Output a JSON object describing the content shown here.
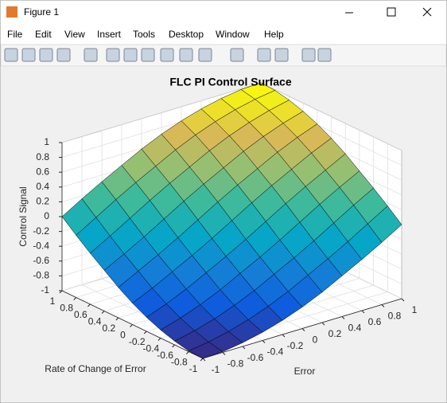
{
  "window": {
    "title": "Figure 1",
    "menu": [
      "File",
      "Edit",
      "View",
      "Insert",
      "Tools",
      "Desktop",
      "Window",
      "Help"
    ]
  },
  "chart_data": {
    "type": "surface",
    "title": "FLC PI Control Surface",
    "xlabel": "Error",
    "ylabel": "Rate of Change of Error",
    "zlabel": "Control Signal",
    "colormap": "parula",
    "grid": true,
    "x": [
      -1,
      -0.8,
      -0.6,
      -0.4,
      -0.2,
      0,
      0.2,
      0.4,
      0.6,
      0.8,
      1
    ],
    "y": [
      -1,
      -0.8,
      -0.6,
      -0.4,
      -0.2,
      0,
      0.2,
      0.4,
      0.6,
      0.8,
      1
    ],
    "z": [
      [
        -1,
        -0.99,
        -0.95,
        -0.89,
        -0.81,
        -0.71,
        -0.59,
        -0.45,
        -0.31,
        -0.16,
        0
      ],
      [
        -0.99,
        -0.95,
        -0.89,
        -0.81,
        -0.71,
        -0.59,
        -0.45,
        -0.31,
        -0.16,
        0,
        0.16
      ],
      [
        -0.95,
        -0.89,
        -0.81,
        -0.71,
        -0.59,
        -0.45,
        -0.31,
        -0.16,
        0,
        0.16,
        0.31
      ],
      [
        -0.89,
        -0.81,
        -0.71,
        -0.59,
        -0.45,
        -0.31,
        -0.16,
        0,
        0.16,
        0.31,
        0.45
      ],
      [
        -0.81,
        -0.71,
        -0.59,
        -0.45,
        -0.31,
        -0.16,
        0,
        0.16,
        0.31,
        0.45,
        0.59
      ],
      [
        -0.71,
        -0.59,
        -0.45,
        -0.31,
        -0.16,
        0,
        0.16,
        0.31,
        0.45,
        0.59,
        0.71
      ],
      [
        -0.59,
        -0.45,
        -0.31,
        -0.16,
        0,
        0.16,
        0.31,
        0.45,
        0.59,
        0.71,
        0.81
      ],
      [
        -0.45,
        -0.31,
        -0.16,
        0,
        0.16,
        0.31,
        0.45,
        0.59,
        0.71,
        0.81,
        0.89
      ],
      [
        -0.31,
        -0.16,
        0,
        0.16,
        0.31,
        0.45,
        0.59,
        0.71,
        0.81,
        0.89,
        0.95
      ],
      [
        -0.16,
        0,
        0.16,
        0.31,
        0.45,
        0.59,
        0.71,
        0.81,
        0.89,
        0.95,
        0.99
      ],
      [
        0,
        0.16,
        0.31,
        0.45,
        0.59,
        0.71,
        0.81,
        0.89,
        0.95,
        0.99,
        1
      ]
    ],
    "xlim": [
      -1,
      1
    ],
    "xticks": [
      -1,
      -0.8,
      -0.6,
      -0.4,
      -0.2,
      0,
      0.2,
      0.4,
      0.6,
      0.8,
      1
    ],
    "ylim": [
      -1,
      1
    ],
    "yticks": [
      -1,
      -0.8,
      -0.6,
      -0.4,
      -0.2,
      0,
      0.2,
      0.4,
      0.6,
      0.8,
      1
    ],
    "zlim": [
      -1,
      1
    ],
    "zticks": [
      -1,
      -0.8,
      -0.6,
      -0.4,
      -0.2,
      0,
      0.2,
      0.4,
      0.6,
      0.8,
      1
    ]
  }
}
